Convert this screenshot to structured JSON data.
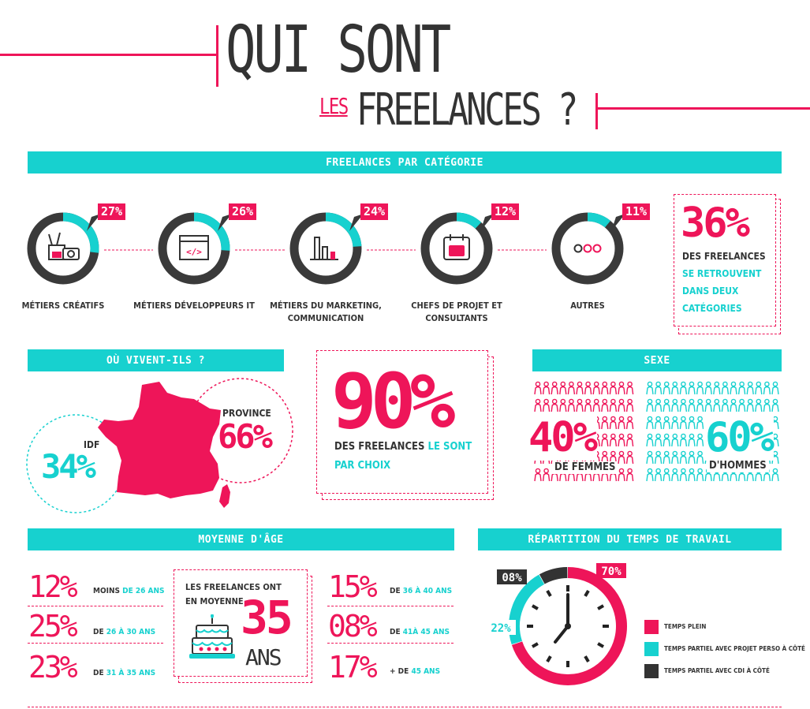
{
  "header": {
    "title_line1": "QUI SONT",
    "title_les": "LES",
    "title_line2": "FREELANCES ?"
  },
  "colors": {
    "pink": "#ee1559",
    "teal": "#17d1cf",
    "dark": "#333333"
  },
  "categories_section": {
    "band_label": "FREELANCES PAR CATÉGORIE",
    "items": [
      {
        "percent": "27%",
        "label_line1": "MÉTIERS CRÉATIFS",
        "label_line2": "",
        "icon": "camera-brushes-icon"
      },
      {
        "percent": "26%",
        "label_line1": "MÉTIERS DÉVELOPPEURS IT",
        "label_line2": "",
        "icon": "code-window-icon"
      },
      {
        "percent": "24%",
        "label_line1": "MÉTIERS DU MARKETING,",
        "label_line2": "COMMUNICATION",
        "icon": "bar-chart-icon"
      },
      {
        "percent": "12%",
        "label_line1": "CHEFS DE PROJET ET",
        "label_line2": "CONSULTANTS",
        "icon": "social-calendar-icon"
      },
      {
        "percent": "11%",
        "label_line1": "AUTRES",
        "label_line2": "",
        "icon": "three-dots-icon"
      }
    ],
    "note": {
      "pct": "36%",
      "line1": "DES FREELANCES",
      "line2": "SE RETROUVENT",
      "line3": "DANS DEUX",
      "line4": "CATÉGORIES"
    }
  },
  "location_section": {
    "band_label": "OÙ VIVENT-ILS ?",
    "idf_label": "IDF",
    "idf_pct": "34%",
    "province_label": "PROVINCE",
    "province_pct": "66%"
  },
  "choice_note": {
    "pct": "90%",
    "line1_dark": "DES FREELANCES",
    "line1_teal": "LE SONT",
    "line2_teal": "PAR CHOIX"
  },
  "sex_section": {
    "band_label": "SEXE",
    "women_pct": "40%",
    "women_label": "DE FEMMES",
    "men_pct": "60%",
    "men_label": "D'HOMMES"
  },
  "age_section": {
    "band_label": "MOYENNE D'ÂGE",
    "rows_left": [
      {
        "pct": "12%",
        "pre": "MOINS",
        "post": "DE 26 ANS"
      },
      {
        "pct": "25%",
        "pre": "DE",
        "post": "26 À 30 ANS"
      },
      {
        "pct": "23%",
        "pre": "DE",
        "post": "31 À 35 ANS"
      }
    ],
    "rows_right": [
      {
        "pct": "15%",
        "pre": "DE",
        "post": "36 À 40 ANS"
      },
      {
        "pct": "08%",
        "pre": "DE",
        "post": "41À 45 ANS"
      },
      {
        "pct": "17%",
        "pre": "+ DE",
        "post": "45 ANS"
      }
    ],
    "average": {
      "line1": "LES FREELANCES ONT",
      "line2": "EN MOYENNE",
      "value": "35",
      "unit": "ANS"
    }
  },
  "work_section": {
    "band_label": "RÉPARTITION DU TEMPS DE TRAVAIL",
    "legend": [
      {
        "label": "TEMPS PLEIN",
        "color": "#ee1559"
      },
      {
        "label": "TEMPS PARTIEL AVEC PROJET PERSO À CÔTÉ",
        "color": "#17d1cf"
      },
      {
        "label": "TEMPS PARTIEL AVEC CDI À CÔTÉ",
        "color": "#333333"
      }
    ]
  },
  "chart_data": [
    {
      "type": "pie",
      "title": "FREELANCES PAR CATÉGORIE",
      "categories": [
        "MÉTIERS CRÉATIFS",
        "MÉTIERS DÉVELOPPEURS IT",
        "MÉTIERS DU MARKETING, COMMUNICATION",
        "CHEFS DE PROJET ET CONSULTANTS",
        "AUTRES"
      ],
      "values": [
        27,
        26,
        24,
        12,
        11
      ]
    },
    {
      "type": "pie",
      "title": "OÙ VIVENT-ILS ?",
      "categories": [
        "IDF",
        "PROVINCE"
      ],
      "values": [
        34,
        66
      ]
    },
    {
      "type": "pie",
      "title": "SEXE",
      "categories": [
        "DE FEMMES",
        "D'HOMMES"
      ],
      "values": [
        40,
        60
      ]
    },
    {
      "type": "bar",
      "title": "MOYENNE D'ÂGE",
      "categories": [
        "MOINS DE 26 ANS",
        "DE 26 À 30 ANS",
        "DE 31 À 35 ANS",
        "DE 36 À 40 ANS",
        "DE 41À 45 ANS",
        "+ DE 45 ANS"
      ],
      "values": [
        12,
        25,
        23,
        15,
        8,
        17
      ]
    },
    {
      "type": "pie",
      "title": "RÉPARTITION DU TEMPS DE TRAVAIL",
      "categories": [
        "TEMPS PLEIN",
        "TEMPS PARTIEL AVEC PROJET PERSO À CÔTÉ",
        "TEMPS PARTIEL AVEC CDI À CÔTÉ"
      ],
      "values": [
        70,
        22,
        8
      ],
      "labels": [
        "70%",
        "22%",
        "08%"
      ]
    }
  ]
}
